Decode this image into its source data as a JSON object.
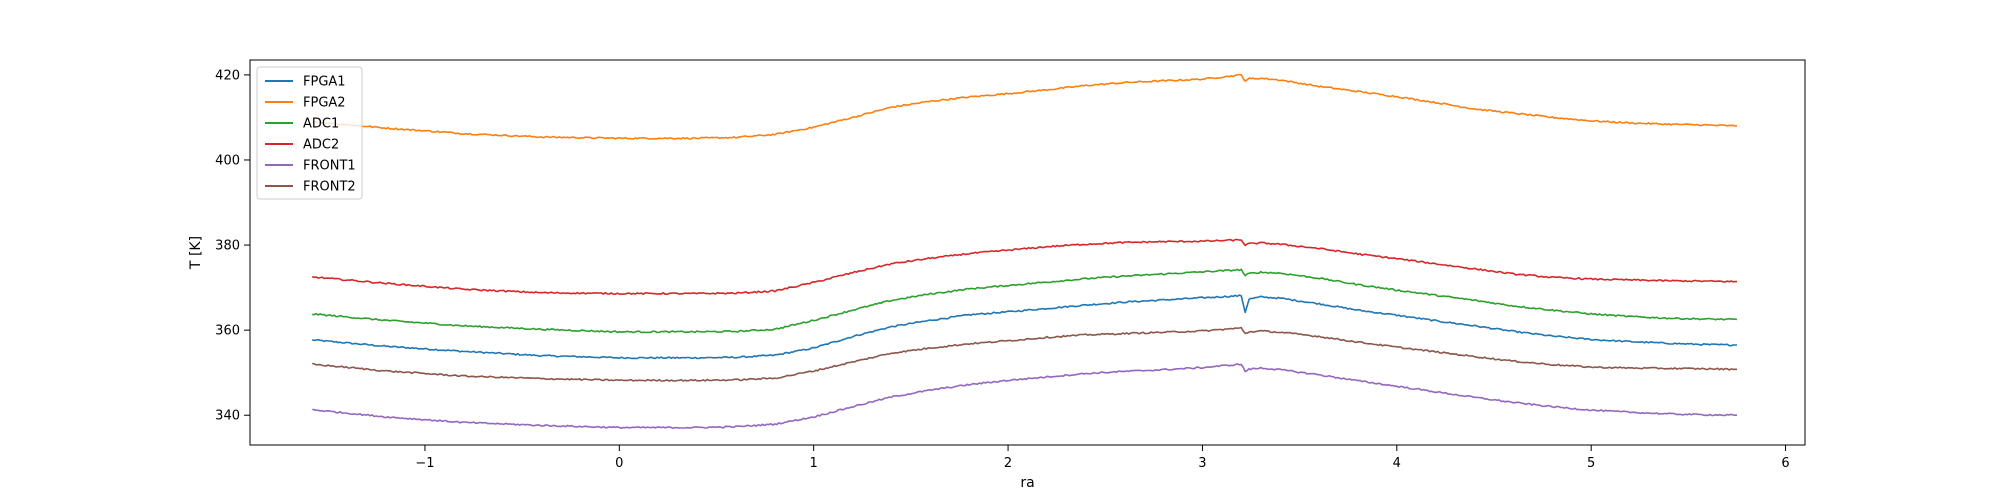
{
  "chart_data": {
    "type": "line",
    "xlabel": "ra",
    "ylabel": "T [K]",
    "xlim": [
      -1.9,
      6.1
    ],
    "ylim": [
      333,
      423.5
    ],
    "xticks": [
      -1,
      0,
      1,
      2,
      3,
      4,
      5,
      6
    ],
    "yticks": [
      340,
      360,
      380,
      400,
      420
    ],
    "grid": false,
    "legend_position": "upper left",
    "x": [
      -1.58,
      -1.2,
      -0.8,
      -0.4,
      0.0,
      0.4,
      0.6,
      0.8,
      1.0,
      1.2,
      1.4,
      1.6,
      1.8,
      2.0,
      2.2,
      2.4,
      2.6,
      2.8,
      3.0,
      3.2,
      3.22,
      3.24,
      3.3,
      3.4,
      3.6,
      3.8,
      4.0,
      4.2,
      4.4,
      4.6,
      4.8,
      5.0,
      5.2,
      5.4,
      5.6,
      5.75
    ],
    "series": [
      {
        "name": "FPGA1",
        "color": "#1f77b4",
        "values": [
          357.7,
          356.2,
          355.0,
          354.0,
          353.5,
          353.5,
          353.6,
          354.1,
          355.8,
          358.5,
          360.8,
          362.3,
          363.6,
          364.3,
          365.1,
          365.9,
          366.6,
          367.1,
          367.6,
          368.1,
          364.2,
          367.3,
          367.8,
          367.5,
          366.2,
          364.7,
          363.5,
          362.2,
          361.0,
          359.7,
          358.6,
          357.8,
          357.3,
          356.9,
          356.6,
          356.5
        ]
      },
      {
        "name": "FPGA2",
        "color": "#ff7f0e",
        "values": [
          409.0,
          407.5,
          406.2,
          405.4,
          405.1,
          405.1,
          405.3,
          406.0,
          407.7,
          410.0,
          412.4,
          413.8,
          414.8,
          415.6,
          416.5,
          417.5,
          418.2,
          418.6,
          419.0,
          420.0,
          418.6,
          419.1,
          419.2,
          418.8,
          417.3,
          416.1,
          414.9,
          413.5,
          412.0,
          411.0,
          410.0,
          409.2,
          408.7,
          408.4,
          408.2,
          408.0
        ]
      },
      {
        "name": "ADC1",
        "color": "#2ca02c",
        "values": [
          363.8,
          362.3,
          361.0,
          360.2,
          359.6,
          359.6,
          359.7,
          360.2,
          362.3,
          364.7,
          367.0,
          368.5,
          369.7,
          370.5,
          371.3,
          372.1,
          372.7,
          373.2,
          373.7,
          374.2,
          372.8,
          373.3,
          373.6,
          373.4,
          372.2,
          370.7,
          369.4,
          368.2,
          367.0,
          365.7,
          364.7,
          363.8,
          363.2,
          362.8,
          362.6,
          362.5
        ]
      },
      {
        "name": "ADC2",
        "color": "#d62728",
        "values": [
          372.5,
          371.0,
          369.6,
          368.8,
          368.6,
          368.6,
          368.7,
          369.2,
          371.2,
          373.5,
          375.6,
          376.9,
          378.0,
          378.8,
          379.6,
          380.2,
          380.6,
          380.8,
          380.9,
          381.2,
          380.0,
          380.3,
          380.5,
          380.2,
          379.2,
          377.9,
          376.8,
          375.6,
          374.4,
          373.2,
          372.4,
          372.0,
          371.8,
          371.6,
          371.5,
          371.4
        ]
      },
      {
        "name": "FRONT1",
        "color": "#9467bd",
        "values": [
          341.3,
          339.6,
          338.3,
          337.6,
          337.1,
          337.1,
          337.3,
          337.9,
          339.6,
          342.0,
          344.3,
          345.9,
          347.2,
          348.2,
          349.0,
          349.8,
          350.3,
          350.7,
          351.2,
          352.0,
          350.3,
          350.8,
          351.1,
          350.7,
          349.5,
          348.1,
          346.8,
          345.5,
          344.2,
          343.0,
          342.0,
          341.2,
          340.7,
          340.3,
          340.1,
          340.0
        ]
      },
      {
        "name": "FRONT2",
        "color": "#8c564b",
        "values": [
          352.0,
          350.4,
          349.2,
          348.6,
          348.2,
          348.2,
          348.3,
          348.7,
          350.4,
          352.5,
          354.6,
          355.8,
          356.8,
          357.5,
          358.3,
          358.9,
          359.2,
          359.5,
          359.8,
          360.5,
          359.2,
          359.6,
          359.8,
          359.5,
          358.5,
          357.2,
          356.0,
          354.9,
          353.8,
          352.7,
          351.9,
          351.3,
          351.1,
          351.0,
          350.9,
          350.8
        ]
      }
    ]
  }
}
